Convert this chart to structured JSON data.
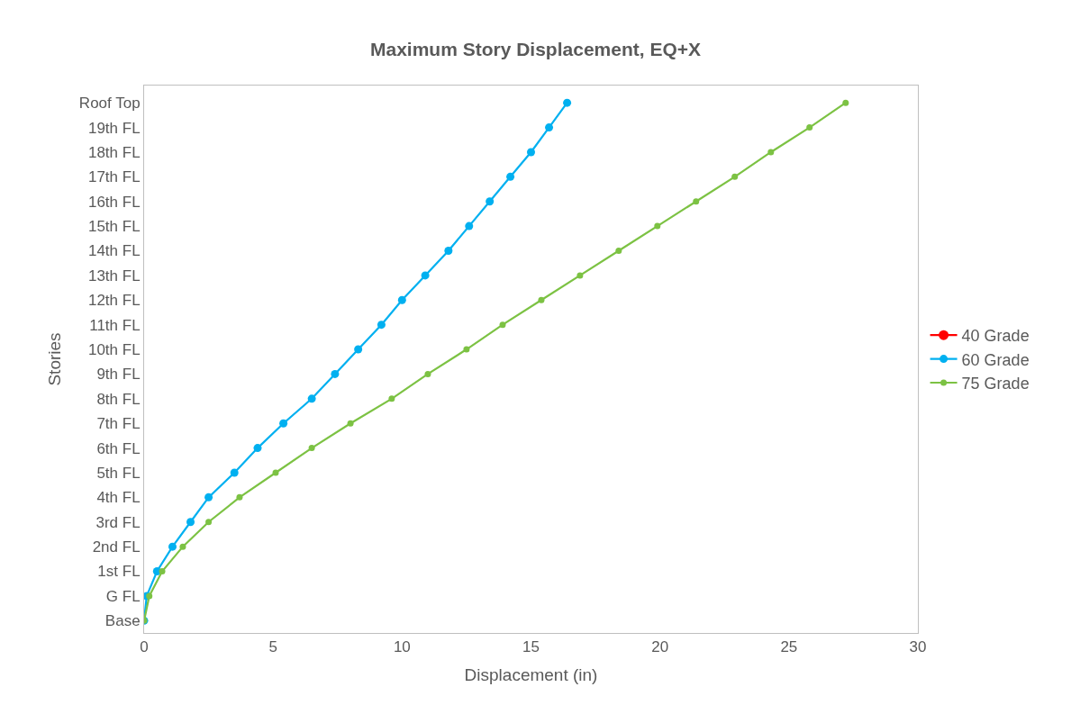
{
  "chart_data": {
    "type": "line",
    "orientation": "horizontal",
    "title": "Maximum Story Displacement, EQ+X",
    "xlabel": "Displacement (in)",
    "ylabel": "Stories",
    "categories": [
      "Roof Top",
      "19th FL",
      "18th FL",
      "17th FL",
      "16th FL",
      "15th FL",
      "14th FL",
      "13th FL",
      "12th FL",
      "11th FL",
      "10th FL",
      "9th FL",
      "8th FL",
      "7th FL",
      "6th FL",
      "5th FL",
      "4th FL",
      "3rd FL",
      "2nd FL",
      "1st FL",
      "G FL",
      "Base"
    ],
    "series": [
      {
        "name": "40 Grade",
        "color": "#ff0000",
        "values": [
          null,
          null,
          null,
          null,
          null,
          null,
          null,
          null,
          null,
          null,
          null,
          null,
          null,
          null,
          null,
          null,
          null,
          null,
          null,
          null,
          null,
          null
        ]
      },
      {
        "name": "60 Grade",
        "color": "#00b0f0",
        "values": [
          16.4,
          15.7,
          15.0,
          14.2,
          13.4,
          12.6,
          11.8,
          10.9,
          10.0,
          9.2,
          8.3,
          7.4,
          6.5,
          5.4,
          4.4,
          3.5,
          2.5,
          1.8,
          1.1,
          0.5,
          0.1,
          0
        ]
      },
      {
        "name": "75 Grade",
        "color": "#7cc243",
        "values": [
          27.2,
          25.8,
          24.3,
          22.9,
          21.4,
          19.9,
          18.4,
          16.9,
          15.4,
          13.9,
          12.5,
          11.0,
          9.6,
          8.0,
          6.5,
          5.1,
          3.7,
          2.5,
          1.5,
          0.7,
          0.2,
          0
        ]
      }
    ],
    "xlim": [
      0,
      30
    ],
    "xticks": [
      0,
      5,
      10,
      15,
      20,
      25,
      30
    ],
    "grid": false,
    "legend": "right",
    "marker": "circle",
    "line_style": "solid"
  }
}
